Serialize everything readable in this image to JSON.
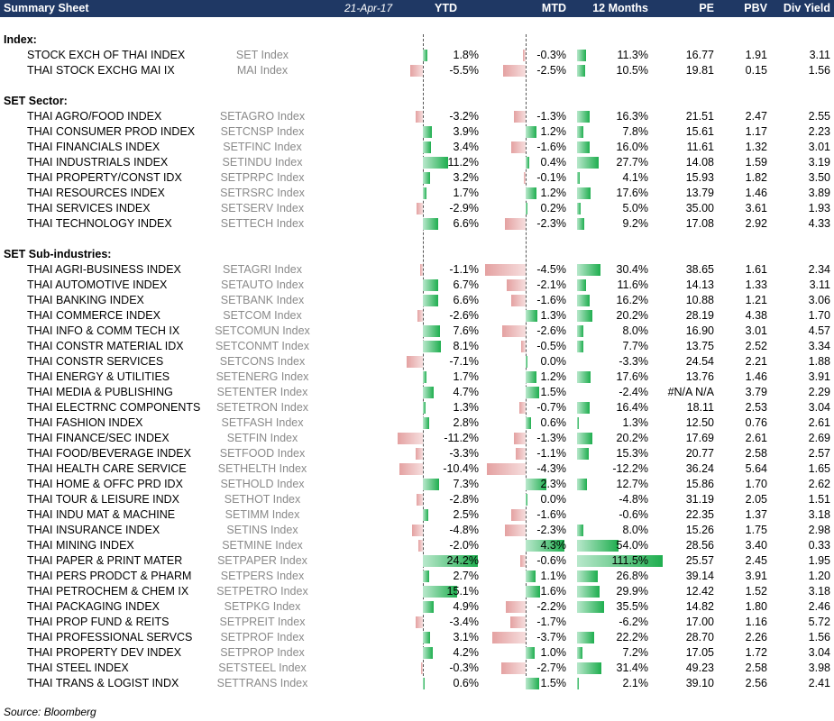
{
  "header": {
    "title": "Summary Sheet",
    "date": "21-Apr-17",
    "col_ytd": "YTD",
    "col_mtd": "MTD",
    "col_12m": "12 Months",
    "col_pe": "PE",
    "col_pbv": "PBV",
    "col_dy": "Div Yield"
  },
  "colors": {
    "header_bg": "#1f3864",
    "positive_bar": "#1fae4f",
    "negative_bar": "#e4a1a1",
    "ticker_text": "#8a8a8a"
  },
  "sections": [
    {
      "title": "Index:",
      "rows": [
        {
          "name": "STOCK EXCH OF THAI INDEX",
          "ticker": "SET Index",
          "ytd": 1.8,
          "mtd": -0.3,
          "m12": 11.3,
          "pe": "16.77",
          "pbv": "1.91",
          "dy": "3.11"
        },
        {
          "name": "THAI STOCK EXCHG MAI IX",
          "ticker": "MAI Index",
          "ytd": -5.5,
          "mtd": -2.5,
          "m12": 10.5,
          "pe": "19.81",
          "pbv": "0.15",
          "dy": "1.56"
        }
      ]
    },
    {
      "title": "SET Sector:",
      "rows": [
        {
          "name": "THAI AGRO/FOOD INDEX",
          "ticker": "SETAGRO Index",
          "ytd": -3.2,
          "mtd": -1.3,
          "m12": 16.3,
          "pe": "21.51",
          "pbv": "2.47",
          "dy": "2.55"
        },
        {
          "name": "THAI CONSUMER PROD INDEX",
          "ticker": "SETCNSP Index",
          "ytd": 3.9,
          "mtd": 1.2,
          "m12": 7.8,
          "pe": "15.61",
          "pbv": "1.17",
          "dy": "2.23"
        },
        {
          "name": "THAI FINANCIALS INDEX",
          "ticker": "SETFINC Index",
          "ytd": 3.4,
          "mtd": -1.6,
          "m12": 16.0,
          "pe": "11.61",
          "pbv": "1.32",
          "dy": "3.01"
        },
        {
          "name": "THAI INDUSTRIALS INDEX",
          "ticker": "SETINDU Index",
          "ytd": 11.2,
          "mtd": 0.4,
          "m12": 27.7,
          "pe": "14.08",
          "pbv": "1.59",
          "dy": "3.19"
        },
        {
          "name": "THAI PROPERTY/CONST IDX",
          "ticker": "SETPRPC Index",
          "ytd": 3.2,
          "mtd": -0.1,
          "m12": 4.1,
          "pe": "15.93",
          "pbv": "1.82",
          "dy": "3.50"
        },
        {
          "name": "THAI RESOURCES INDEX",
          "ticker": "SETRSRC Index",
          "ytd": 1.7,
          "mtd": 1.2,
          "m12": 17.6,
          "pe": "13.79",
          "pbv": "1.46",
          "dy": "3.89"
        },
        {
          "name": "THAI SERVICES INDEX",
          "ticker": "SETSERV Index",
          "ytd": -2.9,
          "mtd": 0.2,
          "m12": 5.0,
          "pe": "35.00",
          "pbv": "3.61",
          "dy": "1.93"
        },
        {
          "name": "THAI TECHNOLOGY INDEX",
          "ticker": "SETTECH Index",
          "ytd": 6.6,
          "mtd": -2.3,
          "m12": 9.2,
          "pe": "17.08",
          "pbv": "2.92",
          "dy": "4.33"
        }
      ]
    },
    {
      "title": "SET Sub-industries:",
      "rows": [
        {
          "name": "THAI AGRI-BUSINESS INDEX",
          "ticker": "SETAGRI Index",
          "ytd": -1.1,
          "mtd": -4.5,
          "m12": 30.4,
          "pe": "38.65",
          "pbv": "1.61",
          "dy": "2.34"
        },
        {
          "name": "THAI AUTOMOTIVE INDEX",
          "ticker": "SETAUTO Index",
          "ytd": 6.7,
          "mtd": -2.1,
          "m12": 11.6,
          "pe": "14.13",
          "pbv": "1.33",
          "dy": "3.11"
        },
        {
          "name": "THAI BANKING INDEX",
          "ticker": "SETBANK Index",
          "ytd": 6.6,
          "mtd": -1.6,
          "m12": 16.2,
          "pe": "10.88",
          "pbv": "1.21",
          "dy": "3.06"
        },
        {
          "name": "THAI COMMERCE INDEX",
          "ticker": "SETCOM Index",
          "ytd": -2.6,
          "mtd": 1.3,
          "m12": 20.2,
          "pe": "28.19",
          "pbv": "4.38",
          "dy": "1.70"
        },
        {
          "name": "THAI INFO & COMM TECH IX",
          "ticker": "SETCOMUN Index",
          "ytd": 7.6,
          "mtd": -2.6,
          "m12": 8.0,
          "pe": "16.90",
          "pbv": "3.01",
          "dy": "4.57"
        },
        {
          "name": "THAI CONSTR MATERIAL IDX",
          "ticker": "SETCONMT Index",
          "ytd": 8.1,
          "mtd": -0.5,
          "m12": 7.7,
          "pe": "13.75",
          "pbv": "2.52",
          "dy": "3.34"
        },
        {
          "name": "THAI CONSTR SERVICES",
          "ticker": "SETCONS Index",
          "ytd": -7.1,
          "mtd": 0.0,
          "m12": -3.3,
          "pe": "24.54",
          "pbv": "2.21",
          "dy": "1.88"
        },
        {
          "name": "THAI ENERGY & UTILITIES",
          "ticker": "SETENERG Index",
          "ytd": 1.7,
          "mtd": 1.2,
          "m12": 17.6,
          "pe": "13.76",
          "pbv": "1.46",
          "dy": "3.91"
        },
        {
          "name": "THAI MEDIA & PUBLISHING",
          "ticker": "SETENTER Index",
          "ytd": 4.7,
          "mtd": 1.5,
          "m12": -2.4,
          "pe": "#N/A N/A",
          "pbv": "3.79",
          "dy": "2.29"
        },
        {
          "name": "THAI ELECTRNC COMPONENTS",
          "ticker": "SETETRON Index",
          "ytd": 1.3,
          "mtd": -0.7,
          "m12": 16.4,
          "pe": "18.11",
          "pbv": "2.53",
          "dy": "3.04"
        },
        {
          "name": "THAI FASHION INDEX",
          "ticker": "SETFASH Index",
          "ytd": 2.8,
          "mtd": 0.6,
          "m12": 1.3,
          "pe": "12.50",
          "pbv": "0.76",
          "dy": "2.61"
        },
        {
          "name": "THAI FINANCE/SEC INDEX",
          "ticker": "SETFIN Index",
          "ytd": -11.2,
          "mtd": -1.3,
          "m12": 20.2,
          "pe": "17.69",
          "pbv": "2.61",
          "dy": "2.69"
        },
        {
          "name": "THAI FOOD/BEVERAGE INDEX",
          "ticker": "SETFOOD Index",
          "ytd": -3.3,
          "mtd": -1.1,
          "m12": 15.3,
          "pe": "20.77",
          "pbv": "2.58",
          "dy": "2.57"
        },
        {
          "name": "THAI HEALTH CARE SERVICE",
          "ticker": "SETHELTH Index",
          "ytd": -10.4,
          "mtd": -4.3,
          "m12": -12.2,
          "pe": "36.24",
          "pbv": "5.64",
          "dy": "1.65"
        },
        {
          "name": "THAI HOME & OFFC PRD IDX",
          "ticker": "SETHOLD Index",
          "ytd": 7.3,
          "mtd": 2.3,
          "m12": 12.7,
          "pe": "15.86",
          "pbv": "1.70",
          "dy": "2.62"
        },
        {
          "name": "THAI TOUR & LEISURE INDX",
          "ticker": "SETHOT Index",
          "ytd": -2.8,
          "mtd": 0.0,
          "m12": -4.8,
          "pe": "31.19",
          "pbv": "2.05",
          "dy": "1.51"
        },
        {
          "name": "THAI INDU MAT & MACHINE",
          "ticker": "SETIMM Index",
          "ytd": 2.5,
          "mtd": -1.6,
          "m12": -0.6,
          "pe": "22.35",
          "pbv": "1.37",
          "dy": "3.18"
        },
        {
          "name": "THAI INSURANCE INDEX",
          "ticker": "SETINS Index",
          "ytd": -4.8,
          "mtd": -2.3,
          "m12": 8.0,
          "pe": "15.26",
          "pbv": "1.75",
          "dy": "2.98"
        },
        {
          "name": "THAI MINING INDEX",
          "ticker": "SETMINE Index",
          "ytd": -2.0,
          "mtd": 4.3,
          "m12": 54.0,
          "pe": "28.56",
          "pbv": "3.40",
          "dy": "0.33"
        },
        {
          "name": "THAI PAPER & PRINT MATER",
          "ticker": "SETPAPER Index",
          "ytd": 24.2,
          "mtd": -0.6,
          "m12": 111.5,
          "pe": "25.57",
          "pbv": "2.45",
          "dy": "1.95"
        },
        {
          "name": "THAI PERS PRODCT & PHARM",
          "ticker": "SETPERS Index",
          "ytd": 2.7,
          "mtd": 1.1,
          "m12": 26.8,
          "pe": "39.14",
          "pbv": "3.91",
          "dy": "1.20"
        },
        {
          "name": "THAI PETROCHEM & CHEM IX",
          "ticker": "SETPETRO Index",
          "ytd": 15.1,
          "mtd": 1.6,
          "m12": 29.9,
          "pe": "12.42",
          "pbv": "1.52",
          "dy": "3.18"
        },
        {
          "name": "THAI PACKAGING INDEX",
          "ticker": "SETPKG Index",
          "ytd": 4.9,
          "mtd": -2.2,
          "m12": 35.5,
          "pe": "14.82",
          "pbv": "1.80",
          "dy": "2.46"
        },
        {
          "name": "THAI PROP FUND & REITS",
          "ticker": "SETPREIT Index",
          "ytd": -3.4,
          "mtd": -1.7,
          "m12": -6.2,
          "pe": "17.00",
          "pbv": "1.16",
          "dy": "5.72"
        },
        {
          "name": "THAI PROFESSIONAL SERVCS",
          "ticker": "SETPROF Index",
          "ytd": 3.1,
          "mtd": -3.7,
          "m12": 22.2,
          "pe": "28.70",
          "pbv": "2.26",
          "dy": "1.56"
        },
        {
          "name": "THAI PROPERTY DEV INDEX",
          "ticker": "SETPROP Index",
          "ytd": 4.2,
          "mtd": 1.0,
          "m12": 7.2,
          "pe": "17.05",
          "pbv": "1.72",
          "dy": "3.04"
        },
        {
          "name": "THAI STEEL INDEX",
          "ticker": "SETSTEEL Index",
          "ytd": -0.3,
          "mtd": -2.7,
          "m12": 31.4,
          "pe": "49.23",
          "pbv": "2.58",
          "dy": "3.98"
        },
        {
          "name": "THAI TRANS & LOGIST INDX",
          "ticker": "SETTRANS Index",
          "ytd": 0.6,
          "mtd": 1.5,
          "m12": 2.1,
          "pe": "39.10",
          "pbv": "2.56",
          "dy": "2.41"
        }
      ]
    }
  ],
  "footer": "Source: Bloomberg"
}
